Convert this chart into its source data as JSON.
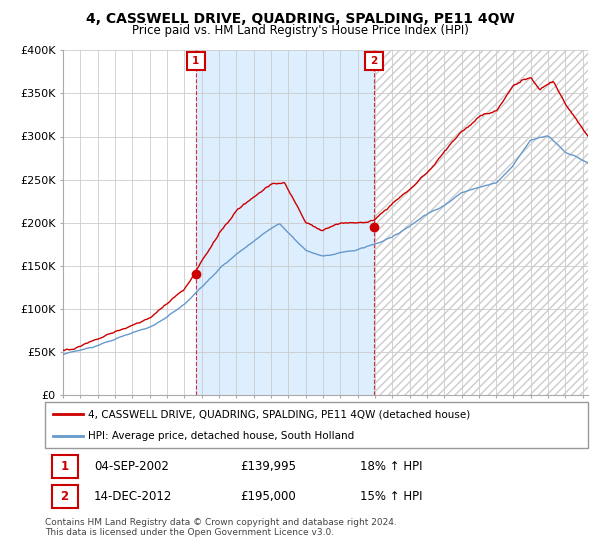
{
  "title": "4, CASSWELL DRIVE, QUADRING, SPALDING, PE11 4QW",
  "subtitle": "Price paid vs. HM Land Registry's House Price Index (HPI)",
  "legend_entry1": "4, CASSWELL DRIVE, QUADRING, SPALDING, PE11 4QW (detached house)",
  "legend_entry2": "HPI: Average price, detached house, South Holland",
  "table_rows": [
    {
      "num": "1",
      "date": "04-SEP-2002",
      "price": "£139,995",
      "change": "18% ↑ HPI"
    },
    {
      "num": "2",
      "date": "14-DEC-2012",
      "price": "£195,000",
      "change": "15% ↑ HPI"
    }
  ],
  "footnote": "Contains HM Land Registry data © Crown copyright and database right 2024.\nThis data is licensed under the Open Government Licence v3.0.",
  "hpi_color": "#6699cc",
  "price_color": "#cc0000",
  "ylim": [
    0,
    400000
  ],
  "yticks": [
    0,
    50000,
    100000,
    150000,
    200000,
    250000,
    300000,
    350000,
    400000
  ],
  "ytick_labels": [
    "£0",
    "£50K",
    "£100K",
    "£150K",
    "£200K",
    "£250K",
    "£300K",
    "£350K",
    "£400K"
  ],
  "xmin": 1995.0,
  "xmax": 2025.3,
  "sale1_x": 2002.67,
  "sale1_y": 139995,
  "sale2_x": 2012.96,
  "sale2_y": 195000,
  "background_color": "#ffffff",
  "grid_color": "#cccccc",
  "shade_color": "#ddeeff",
  "hatch_color": "#cccccc"
}
